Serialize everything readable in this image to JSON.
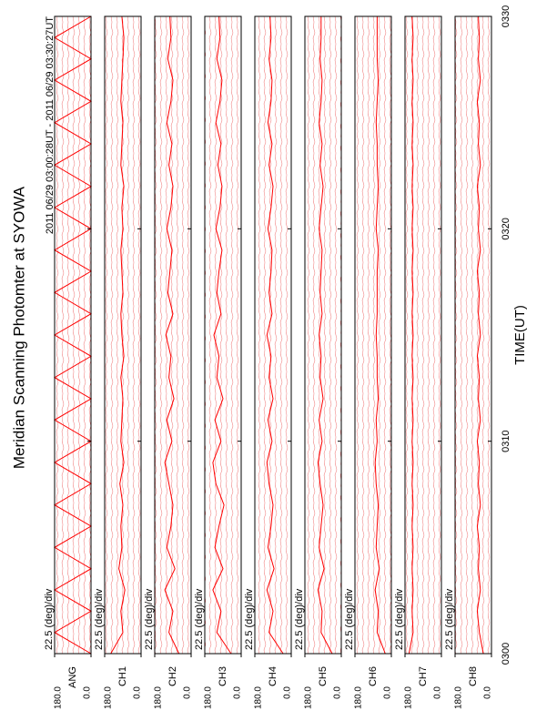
{
  "chart_data": {
    "type": "line",
    "title": "Meridian Scanning Photomter at SYOWA",
    "subtitle": "2011 06/29 03:00:28UT - 2011 06/29 03:30:27UT",
    "xlabel": "TIME(UT)",
    "scale_label": "22.5 (deg)/div",
    "xlim": [
      0,
      30
    ],
    "xticks": [
      {
        "value": 0,
        "label": "0300"
      },
      {
        "value": 10,
        "label": "0310"
      },
      {
        "value": 20,
        "label": "0320"
      },
      {
        "value": 30,
        "label": "0330"
      }
    ],
    "ylim": [
      0,
      180
    ],
    "yticks": [
      {
        "value": 0,
        "label": "0.0"
      },
      {
        "value": 180,
        "label": "180.0"
      }
    ],
    "x": [
      0,
      1,
      2,
      3,
      4,
      5,
      6,
      7,
      8,
      9,
      10,
      11,
      12,
      13,
      14,
      15,
      16,
      17,
      18,
      19,
      20,
      21,
      22,
      23,
      24,
      25,
      26,
      27,
      28,
      29,
      30
    ],
    "series": [
      {
        "name": "ANG",
        "color": "#ff0000",
        "values": [
          0,
          180,
          0,
          180,
          0,
          180,
          0,
          180,
          0,
          180,
          0,
          180,
          0,
          180,
          0,
          180,
          0,
          180,
          0,
          180,
          0,
          180,
          0,
          180,
          0,
          180,
          0,
          180,
          0,
          180,
          0
        ]
      },
      {
        "name": "CH1",
        "color": "#ff0000",
        "values": [
          150,
          90,
          100,
          80,
          110,
          95,
          100,
          90,
          105,
          85,
          100,
          95,
          90,
          100,
          85,
          95,
          100,
          90,
          95,
          100,
          90,
          95,
          85,
          100,
          95,
          90,
          100,
          95,
          90,
          85,
          95
        ]
      },
      {
        "name": "CH2",
        "color": "#ff0000",
        "values": [
          60,
          110,
          90,
          130,
          80,
          120,
          100,
          90,
          110,
          130,
          95,
          120,
          85,
          110,
          100,
          125,
          90,
          115,
          105,
          95,
          120,
          100,
          90,
          110,
          95,
          120,
          100,
          90,
          115,
          100,
          105
        ]
      },
      {
        "name": "CH3",
        "color": "#ff0000",
        "values": [
          50,
          120,
          100,
          140,
          90,
          130,
          110,
          85,
          125,
          140,
          100,
          130,
          90,
          120,
          110,
          135,
          100,
          120,
          110,
          95,
          125,
          105,
          95,
          115,
          100,
          125,
          105,
          95,
          120,
          105,
          110
        ]
      },
      {
        "name": "CH4",
        "color": "#ff0000",
        "values": [
          40,
          110,
          90,
          120,
          85,
          115,
          100,
          90,
          110,
          120,
          95,
          115,
          90,
          110,
          100,
          120,
          95,
          110,
          100,
          95,
          115,
          100,
          90,
          110,
          95,
          115,
          100,
          95,
          110,
          100,
          105
        ]
      },
      {
        "name": "CH5",
        "color": "#ff0000",
        "values": [
          45,
          100,
          95,
          115,
          85,
          110,
          100,
          90,
          105,
          115,
          95,
          110,
          90,
          105,
          100,
          110,
          95,
          105,
          100,
          95,
          110,
          100,
          90,
          105,
          95,
          110,
          100,
          95,
          105,
          100,
          100
        ]
      },
      {
        "name": "CH6",
        "color": "#ff0000",
        "values": [
          30,
          70,
          65,
          80,
          60,
          75,
          70,
          65,
          75,
          80,
          70,
          75,
          65,
          70,
          70,
          75,
          70,
          70,
          70,
          65,
          75,
          70,
          65,
          70,
          70,
          75,
          70,
          65,
          70,
          70,
          70
        ]
      },
      {
        "name": "CH7",
        "color": "#ff0000",
        "values": [
          160,
          140,
          145,
          140,
          145,
          140,
          145,
          140,
          145,
          140,
          145,
          140,
          145,
          140,
          145,
          140,
          145,
          140,
          145,
          140,
          145,
          140,
          145,
          140,
          145,
          140,
          145,
          140,
          145,
          140,
          145
        ]
      },
      {
        "name": "CH8",
        "color": "#ff0000",
        "values": [
          40,
          60,
          70,
          55,
          65,
          60,
          70,
          55,
          65,
          60,
          70,
          55,
          65,
          60,
          70,
          55,
          65,
          60,
          70,
          55,
          65,
          60,
          70,
          55,
          65,
          60,
          70,
          55,
          65,
          60,
          65
        ]
      }
    ]
  }
}
